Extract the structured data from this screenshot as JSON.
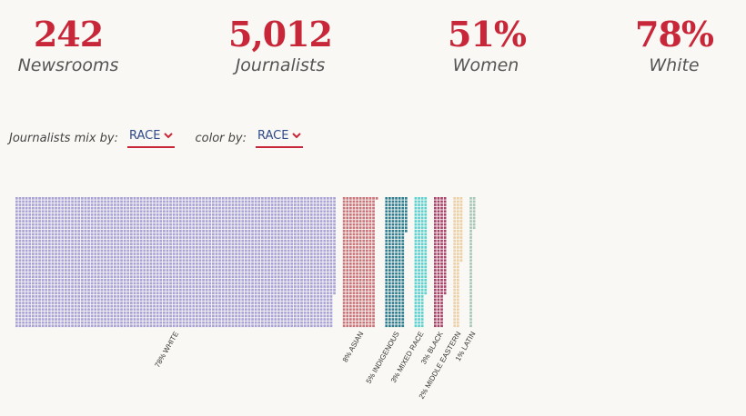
{
  "stats": [
    {
      "value": "242",
      "label": "Newsrooms"
    },
    {
      "value": "5,012",
      "label": "Journalists"
    },
    {
      "value": "51%",
      "label": "Women"
    },
    {
      "value": "78%",
      "label": "White"
    }
  ],
  "controls": {
    "mix_label": "Journalists mix by:",
    "mix_value": "RACE",
    "color_label": "color by:",
    "color_value": "RACE"
  },
  "colors": {
    "accent": "#c8273a",
    "link": "#2f4a8a"
  },
  "chart_data": {
    "type": "waffle",
    "unit": "journalists",
    "total": 5012,
    "categories": [
      {
        "name": "WHITE",
        "pct": 78,
        "label": "78% WHITE",
        "color": "#a9a3d6"
      },
      {
        "name": "ASIAN",
        "pct": 8,
        "label": "8% ASIAN",
        "color": "#c8747a"
      },
      {
        "name": "INDIGENOUS",
        "pct": 5,
        "label": "5% INDIGENOUS",
        "color": "#2f7d8f"
      },
      {
        "name": "MIXED RACE",
        "pct": 3,
        "label": "3% MIXED RACE",
        "color": "#5cd1cf"
      },
      {
        "name": "BLACK",
        "pct": 3,
        "label": "3% BLACK",
        "color": "#a8446b"
      },
      {
        "name": "MIDDLE EASTERN",
        "pct": 2,
        "label": "2% MIDDLE EASTERN",
        "color": "#ecd0a8"
      },
      {
        "name": "LATIN",
        "pct": 1,
        "label": "1% LATIN",
        "color": "#a9c7b9"
      }
    ]
  }
}
